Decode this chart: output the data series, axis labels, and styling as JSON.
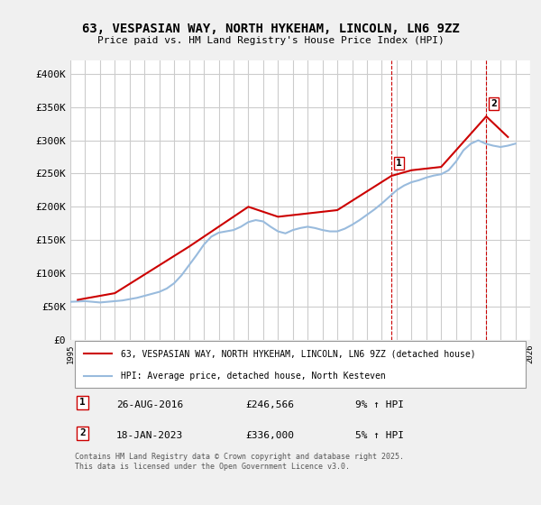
{
  "title_line1": "63, VESPASIAN WAY, NORTH HYKEHAM, LINCOLN, LN6 9ZZ",
  "title_line2": "Price paid vs. HM Land Registry's House Price Index (HPI)",
  "ylabel": "",
  "background_color": "#f0f0f0",
  "plot_bg_color": "#ffffff",
  "red_color": "#cc0000",
  "blue_color": "#99bbdd",
  "grid_color": "#cccccc",
  "yticks": [
    0,
    50000,
    100000,
    150000,
    200000,
    250000,
    300000,
    350000,
    400000
  ],
  "ytick_labels": [
    "£0",
    "£50K",
    "£100K",
    "£150K",
    "£200K",
    "£250K",
    "£300K",
    "£350K",
    "£400K"
  ],
  "xmin": 1995,
  "xmax": 2026,
  "ymin": 0,
  "ymax": 420000,
  "sale1_x": 2016.65,
  "sale1_y": 246566,
  "sale1_label": "1",
  "sale2_x": 2023.04,
  "sale2_y": 336000,
  "sale2_label": "2",
  "legend_line1": "63, VESPASIAN WAY, NORTH HYKEHAM, LINCOLN, LN6 9ZZ (detached house)",
  "legend_line2": "HPI: Average price, detached house, North Kesteven",
  "table_row1": [
    "1",
    "26-AUG-2016",
    "£246,566",
    "9% ↑ HPI"
  ],
  "table_row2": [
    "2",
    "18-JAN-2023",
    "£336,000",
    "5% ↑ HPI"
  ],
  "footnote": "Contains HM Land Registry data © Crown copyright and database right 2025.\nThis data is licensed under the Open Government Licence v3.0.",
  "hpi_years": [
    1995,
    1995.5,
    1996,
    1996.5,
    1997,
    1997.5,
    1998,
    1998.5,
    1999,
    1999.5,
    2000,
    2000.5,
    2001,
    2001.5,
    2002,
    2002.5,
    2003,
    2003.5,
    2004,
    2004.5,
    2005,
    2005.5,
    2006,
    2006.5,
    2007,
    2007.5,
    2008,
    2008.5,
    2009,
    2009.5,
    2010,
    2010.5,
    2011,
    2011.5,
    2012,
    2012.5,
    2013,
    2013.5,
    2014,
    2014.5,
    2015,
    2015.5,
    2016,
    2016.5,
    2017,
    2017.5,
    2018,
    2018.5,
    2019,
    2019.5,
    2020,
    2020.5,
    2021,
    2021.5,
    2022,
    2022.5,
    2023,
    2023.5,
    2024,
    2024.5,
    2025
  ],
  "hpi_values": [
    57000,
    57500,
    58000,
    57000,
    56000,
    57000,
    58000,
    59000,
    61000,
    63000,
    66000,
    69000,
    72000,
    77000,
    85000,
    97000,
    112000,
    127000,
    143000,
    155000,
    161000,
    163000,
    165000,
    170000,
    177000,
    180000,
    178000,
    170000,
    163000,
    160000,
    165000,
    168000,
    170000,
    168000,
    165000,
    163000,
    163000,
    167000,
    173000,
    180000,
    188000,
    196000,
    205000,
    215000,
    225000,
    232000,
    237000,
    240000,
    244000,
    247000,
    249000,
    255000,
    268000,
    285000,
    295000,
    300000,
    295000,
    292000,
    290000,
    292000,
    295000
  ],
  "price_years": [
    1995.5,
    1998,
    2003,
    2007,
    2009,
    2013,
    2016.65,
    2018,
    2020,
    2023.04,
    2024.5
  ],
  "price_values": [
    60000,
    70000,
    140000,
    200000,
    185000,
    195000,
    246566,
    255000,
    260000,
    336000,
    305000
  ]
}
